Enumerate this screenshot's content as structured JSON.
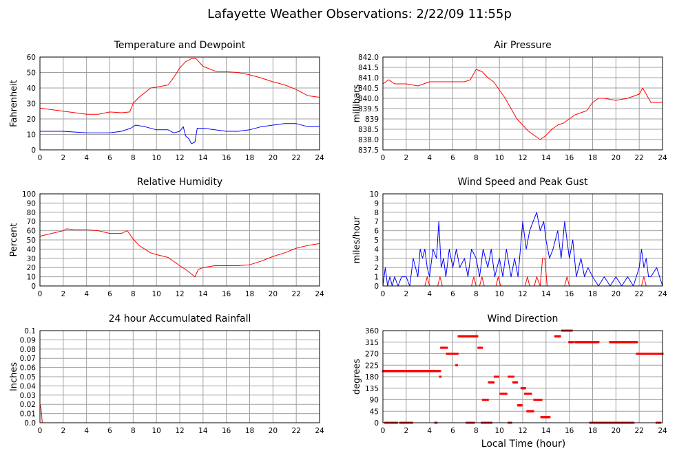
{
  "page_title": "Lafayette Weather Observations: 2/22/09 11:55p",
  "bottom_xlabel": "Local Time (hour)",
  "colors": {
    "primary": "#ff0000",
    "secondary": "#0000ff",
    "grid": "#a0a0a0",
    "axes": "#000000"
  },
  "chart_data": [
    {
      "id": "temp",
      "type": "line",
      "title": "Temperature and Dewpoint",
      "ylabel": "Fahrenheit",
      "xlabel": "",
      "xlim": [
        0,
        24
      ],
      "ylim": [
        0,
        60
      ],
      "xticks": [
        0,
        2,
        4,
        6,
        8,
        10,
        12,
        14,
        16,
        18,
        20,
        22,
        24
      ],
      "yticks": [
        0,
        10,
        20,
        30,
        40,
        50,
        60
      ],
      "ytick_labels": [
        "0",
        "10",
        "20",
        "30",
        "40",
        "50",
        "60"
      ],
      "grid": true,
      "series": [
        {
          "color": "#ff0000",
          "style": "line",
          "x": [
            0,
            1,
            2,
            3,
            4,
            5,
            6,
            7,
            7.7,
            8,
            8.5,
            9,
            9.5,
            10,
            11,
            11.5,
            12,
            12.5,
            13,
            13.4,
            14,
            15,
            16,
            17,
            18,
            19,
            20,
            21,
            22,
            23,
            24
          ],
          "y": [
            27,
            26,
            25,
            24,
            23,
            23,
            24.5,
            24,
            24.5,
            30,
            34,
            37,
            40,
            40.5,
            42,
            47,
            53,
            57,
            59,
            59,
            54,
            51,
            50.5,
            50,
            48.5,
            46.5,
            44,
            42,
            39,
            35,
            34
          ]
        },
        {
          "color": "#0000ff",
          "style": "line",
          "x": [
            0,
            1,
            2,
            3,
            4,
            5,
            6,
            7,
            7.8,
            8.2,
            9,
            10,
            11,
            11.5,
            12,
            12.3,
            12.5,
            12.8,
            13,
            13.3,
            13.5,
            14,
            15,
            16,
            17,
            18,
            19,
            20,
            21,
            22,
            23,
            24
          ],
          "y": [
            12,
            12,
            12,
            11.5,
            11,
            11,
            11,
            12,
            14,
            16,
            15,
            13,
            13,
            11,
            12,
            15,
            9,
            7,
            4,
            5,
            14,
            14,
            13,
            12,
            12,
            13,
            15,
            16,
            17,
            17,
            15,
            15
          ]
        }
      ]
    },
    {
      "id": "pressure",
      "type": "line",
      "title": "Air Pressure",
      "ylabel": "millibars",
      "xlabel": "",
      "xlim": [
        0,
        24
      ],
      "ylim": [
        837.5,
        842.0
      ],
      "xticks": [
        0,
        2,
        4,
        6,
        8,
        10,
        12,
        14,
        16,
        18,
        20,
        22,
        24
      ],
      "yticks": [
        837.5,
        838.0,
        838.5,
        839.0,
        839.5,
        840.0,
        840.5,
        841.0,
        841.5,
        842.0
      ],
      "ytick_labels": [
        "837.5",
        "838.0",
        "838.5",
        "839",
        "839.5",
        "840.0",
        "840.5",
        "841.0",
        "841.5",
        "842.0"
      ],
      "grid": true,
      "series": [
        {
          "color": "#ff0000",
          "style": "line",
          "x": [
            0,
            0.5,
            1,
            2,
            3,
            4,
            5,
            6,
            7,
            7.5,
            8,
            8.5,
            9,
            9.5,
            10,
            10.5,
            11,
            11.5,
            12,
            12.5,
            13,
            13.5,
            14,
            14.5,
            15,
            15.5,
            16,
            16.5,
            17,
            17.5,
            18,
            18.5,
            19,
            20,
            21,
            22,
            22.3,
            22.6,
            23,
            24
          ],
          "y": [
            840.7,
            840.9,
            840.7,
            840.7,
            840.6,
            840.8,
            840.8,
            840.8,
            840.8,
            840.9,
            841.4,
            841.3,
            841.0,
            840.8,
            840.4,
            840.0,
            839.5,
            839.0,
            838.7,
            838.4,
            838.2,
            838.0,
            838.2,
            838.5,
            838.7,
            838.8,
            839.0,
            839.2,
            839.3,
            839.4,
            839.8,
            840.0,
            840.0,
            839.9,
            840.0,
            840.2,
            840.5,
            840.2,
            839.8,
            839.8
          ]
        }
      ]
    },
    {
      "id": "humidity",
      "type": "line",
      "title": "Relative Humidity",
      "ylabel": "Percent",
      "xlabel": "",
      "xlim": [
        0,
        24
      ],
      "ylim": [
        0,
        100
      ],
      "xticks": [
        0,
        2,
        4,
        6,
        8,
        10,
        12,
        14,
        16,
        18,
        20,
        22,
        24
      ],
      "yticks": [
        0,
        10,
        20,
        30,
        40,
        50,
        60,
        70,
        80,
        90,
        100
      ],
      "ytick_labels": [
        "0",
        "10",
        "20",
        "30",
        "40",
        "50",
        "60",
        "70",
        "80",
        "90",
        "100"
      ],
      "grid": true,
      "series": [
        {
          "color": "#ff0000",
          "style": "line",
          "x": [
            0,
            1,
            2,
            2.3,
            3,
            4,
            5,
            6,
            7,
            7.5,
            8,
            8.5,
            9,
            9.5,
            10,
            11,
            12,
            12.5,
            13,
            13.3,
            13.6,
            14,
            15,
            16,
            17,
            18,
            19,
            20,
            21,
            22,
            23,
            24
          ],
          "y": [
            54,
            57,
            60,
            62,
            61,
            61,
            60,
            57,
            57,
            60,
            51,
            44,
            40,
            36,
            34,
            31,
            22,
            18,
            13,
            10,
            18,
            20,
            22,
            22,
            22,
            23,
            27,
            32,
            36,
            41,
            44,
            46
          ]
        }
      ]
    },
    {
      "id": "wind",
      "type": "line",
      "title": "Wind Speed and Peak Gust",
      "ylabel": "miles/hour",
      "xlabel": "",
      "xlim": [
        0,
        24
      ],
      "ylim": [
        0,
        10
      ],
      "xticks": [
        0,
        2,
        4,
        6,
        8,
        10,
        12,
        14,
        16,
        18,
        20,
        22,
        24
      ],
      "yticks": [
        0,
        1,
        2,
        3,
        4,
        5,
        6,
        7,
        8,
        9,
        10
      ],
      "ytick_labels": [
        "0",
        "1",
        "2",
        "3",
        "4",
        "5",
        "6",
        "7",
        "8",
        "9",
        "10"
      ],
      "grid": true,
      "series": [
        {
          "color": "#0000ff",
          "style": "line",
          "x": [
            0,
            0.2,
            0.4,
            0.6,
            0.8,
            1,
            1.3,
            1.6,
            2,
            2.3,
            2.6,
            3,
            3.2,
            3.4,
            3.6,
            3.8,
            4,
            4.3,
            4.6,
            4.8,
            5,
            5.2,
            5.4,
            5.7,
            6,
            6.3,
            6.6,
            7,
            7.3,
            7.6,
            8,
            8.3,
            8.6,
            9,
            9.3,
            9.6,
            10,
            10.3,
            10.6,
            11,
            11.3,
            11.6,
            12,
            12.3,
            12.6,
            12.9,
            13.2,
            13.5,
            13.8,
            14,
            14.3,
            14.6,
            15,
            15.3,
            15.6,
            16,
            16.3,
            16.6,
            17,
            17.3,
            17.6,
            18,
            18.5,
            19,
            19.5,
            20,
            20.5,
            21,
            21.5,
            22,
            22.2,
            22.4,
            22.6,
            22.8,
            23,
            23.5,
            24
          ],
          "y": [
            0,
            2,
            0,
            1,
            0,
            1,
            0,
            1,
            1,
            0,
            3,
            1,
            4,
            3,
            4,
            2,
            1,
            4,
            3,
            7,
            2,
            3,
            1,
            4,
            2,
            4,
            2,
            3,
            1,
            4,
            3,
            1,
            4,
            2,
            4,
            1,
            3,
            1,
            4,
            1,
            3,
            1,
            7,
            4,
            6,
            7,
            8,
            6,
            7,
            5,
            3,
            4,
            6,
            3,
            7,
            3,
            5,
            1,
            3,
            1,
            2,
            1,
            0,
            1,
            0,
            1,
            0,
            1,
            0,
            2,
            4,
            2,
            3,
            1,
            1,
            2,
            0
          ]
        },
        {
          "color": "#ff0000",
          "style": "line",
          "x": [
            0,
            3.6,
            3.8,
            4.0,
            4.7,
            4.9,
            5.1,
            5.3,
            7.6,
            7.8,
            8.0,
            8.3,
            8.5,
            8.7,
            9.7,
            9.9,
            10.1,
            12.2,
            12.4,
            12.6,
            13.0,
            13.2,
            13.5,
            13.7,
            13.9,
            14.1,
            15.6,
            15.8,
            16.0,
            22.2,
            22.4,
            22.6,
            24
          ],
          "y": [
            0,
            0,
            1,
            0,
            0,
            1,
            0,
            0,
            0,
            1,
            0,
            0,
            1,
            0,
            0,
            1,
            0,
            0,
            1,
            0,
            0,
            1,
            0,
            3,
            3,
            0,
            0,
            1,
            0,
            0,
            1,
            0,
            0
          ]
        }
      ]
    },
    {
      "id": "rain",
      "type": "line",
      "title": "24 hour Accumulated Rainfall",
      "ylabel": "Inches",
      "xlabel": "",
      "xlim": [
        0,
        24
      ],
      "ylim": [
        0,
        0.1
      ],
      "xticks": [
        0,
        2,
        4,
        6,
        8,
        10,
        12,
        14,
        16,
        18,
        20,
        22,
        24
      ],
      "yticks": [
        0,
        0.01,
        0.02,
        0.03,
        0.04,
        0.05,
        0.06,
        0.07,
        0.08,
        0.09,
        0.1
      ],
      "ytick_labels": [
        "0.0",
        "0.01",
        "0.02",
        "0.03",
        "0.04",
        "0.05",
        "0.06",
        "0.07",
        "0.08",
        "0.09",
        "0.1"
      ],
      "grid": true,
      "series": [
        {
          "color": "#ff0000",
          "style": "line",
          "x": [
            0,
            0.1,
            0.2,
            24
          ],
          "y": [
            0.02,
            0.015,
            0,
            0
          ]
        }
      ]
    },
    {
      "id": "direction",
      "type": "scatter",
      "title": "Wind Direction",
      "ylabel": "degrees",
      "xlabel": "Local Time (hour)",
      "xlim": [
        0,
        24
      ],
      "ylim": [
        0,
        360
      ],
      "xticks": [
        0,
        2,
        4,
        6,
        8,
        10,
        12,
        14,
        16,
        18,
        20,
        22,
        24
      ],
      "yticks": [
        0,
        45,
        90,
        135,
        180,
        225,
        270,
        315,
        360
      ],
      "ytick_labels": [
        "0",
        "45",
        "90",
        "135",
        "180",
        "225",
        "270",
        "315",
        "360"
      ],
      "grid": true,
      "series": [
        {
          "color": "#ff0000",
          "style": "points",
          "segments": [
            [
              0.0,
              4.9,
              202
            ],
            [
              4.9,
              4.95,
              180
            ],
            [
              5.0,
              5.5,
              293
            ],
            [
              5.5,
              6.4,
              270
            ],
            [
              6.3,
              6.35,
              225
            ],
            [
              6.5,
              7.2,
              338
            ],
            [
              7.3,
              8.1,
              338
            ],
            [
              8.2,
              8.5,
              293
            ],
            [
              8.6,
              9.0,
              90
            ],
            [
              9.1,
              9.5,
              158
            ],
            [
              9.6,
              9.9,
              180
            ],
            [
              10.1,
              10.6,
              113
            ],
            [
              10.8,
              11.2,
              180
            ],
            [
              11.2,
              11.5,
              158
            ],
            [
              11.6,
              11.9,
              68
            ],
            [
              11.9,
              12.2,
              135
            ],
            [
              12.2,
              12.7,
              113
            ],
            [
              12.4,
              12.9,
              45
            ],
            [
              13.0,
              13.6,
              90
            ],
            [
              13.6,
              14.3,
              22
            ],
            [
              14.8,
              15.2,
              338
            ],
            [
              15.4,
              16.2,
              360
            ],
            [
              16.0,
              16.3,
              315
            ],
            [
              16.5,
              18.5,
              315
            ],
            [
              19.5,
              21.8,
              315
            ],
            [
              21.8,
              24.0,
              270
            ],
            [
              0.2,
              1.2,
              0
            ],
            [
              1.5,
              2.5,
              0
            ],
            [
              4.5,
              4.6,
              0
            ],
            [
              7.2,
              7.8,
              0
            ],
            [
              8.5,
              9.3,
              0
            ],
            [
              10.8,
              11.0,
              0
            ],
            [
              17.8,
              17.9,
              0
            ],
            [
              18.0,
              21.5,
              0
            ],
            [
              23.5,
              23.8,
              0
            ]
          ]
        }
      ]
    }
  ]
}
